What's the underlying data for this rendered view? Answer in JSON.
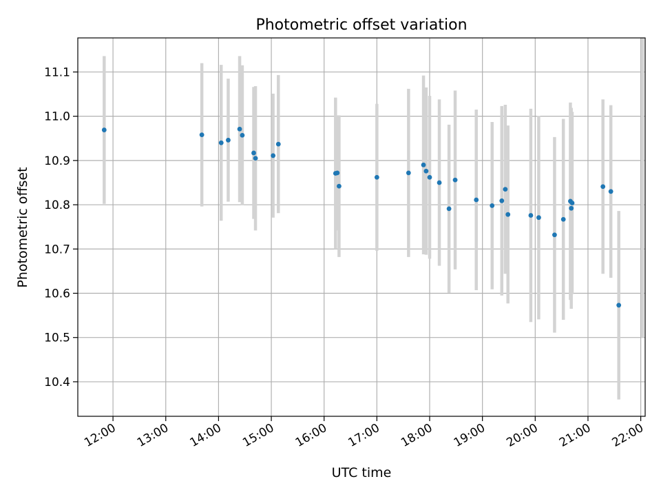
{
  "chart_data": {
    "type": "scatter",
    "title": "Photometric offset variation",
    "xlabel": "UTC time",
    "ylabel": "Photometric offset",
    "grid": true,
    "legend": "none",
    "xlim": [
      "11:20",
      "22:05"
    ],
    "ylim": [
      10.322,
      11.177
    ],
    "x_ticks": [
      "12:00",
      "13:00",
      "14:00",
      "15:00",
      "16:00",
      "17:00",
      "18:00",
      "19:00",
      "20:00",
      "21:00",
      "22:00"
    ],
    "y_ticks": [
      10.4,
      10.5,
      10.6,
      10.7,
      10.8,
      10.9,
      11.0,
      11.1
    ],
    "colors": {
      "point": "#1f77b4",
      "errorbar": "#d3d3d3",
      "grid": "#b0b0b0"
    },
    "points": [
      {
        "x": "11:50",
        "y": 10.969,
        "yerr": 0.167
      },
      {
        "x": "13:41",
        "y": 10.958,
        "yerr": 0.162
      },
      {
        "x": "14:03",
        "y": 10.94,
        "yerr": 0.176
      },
      {
        "x": "14:11",
        "y": 10.946,
        "yerr": 0.139
      },
      {
        "x": "14:24",
        "y": 10.971,
        "yerr": 0.165
      },
      {
        "x": "14:27",
        "y": 10.957,
        "yerr": 0.158
      },
      {
        "x": "14:40",
        "y": 10.917,
        "yerr": 0.149
      },
      {
        "x": "14:42",
        "y": 10.905,
        "yerr": 0.163
      },
      {
        "x": "15:02",
        "y": 10.911,
        "yerr": 0.14
      },
      {
        "x": "15:08",
        "y": 10.937,
        "yerr": 0.156
      },
      {
        "x": "16:13",
        "y": 10.871,
        "yerr": 0.171
      },
      {
        "x": "16:15",
        "y": 10.872,
        "yerr": 0.13
      },
      {
        "x": "16:17",
        "y": 10.842,
        "yerr": 0.16
      },
      {
        "x": "17:00",
        "y": 10.862,
        "yerr": 0.166
      },
      {
        "x": "17:36",
        "y": 10.872,
        "yerr": 0.19
      },
      {
        "x": "17:53",
        "y": 10.89,
        "yerr": 0.202
      },
      {
        "x": "17:56",
        "y": 10.876,
        "yerr": 0.189
      },
      {
        "x": "18:00",
        "y": 10.862,
        "yerr": 0.184
      },
      {
        "x": "18:11",
        "y": 10.85,
        "yerr": 0.188
      },
      {
        "x": "18:22",
        "y": 10.791,
        "yerr": 0.19
      },
      {
        "x": "18:29",
        "y": 10.856,
        "yerr": 0.202
      },
      {
        "x": "18:53",
        "y": 10.811,
        "yerr": 0.204
      },
      {
        "x": "19:11",
        "y": 10.798,
        "yerr": 0.189
      },
      {
        "x": "19:22",
        "y": 10.809,
        "yerr": 0.214
      },
      {
        "x": "19:26",
        "y": 10.835,
        "yerr": 0.191
      },
      {
        "x": "19:29",
        "y": 10.778,
        "yerr": 0.201
      },
      {
        "x": "19:55",
        "y": 10.776,
        "yerr": 0.241
      },
      {
        "x": "20:04",
        "y": 10.771,
        "yerr": 0.23
      },
      {
        "x": "20:22",
        "y": 10.732,
        "yerr": 0.221
      },
      {
        "x": "20:32",
        "y": 10.767,
        "yerr": 0.227
      },
      {
        "x": "20:40",
        "y": 10.808,
        "yerr": 0.223
      },
      {
        "x": "20:41",
        "y": 10.792,
        "yerr": 0.227
      },
      {
        "x": "20:42",
        "y": 10.804,
        "yerr": 0.206
      },
      {
        "x": "21:17",
        "y": 10.841,
        "yerr": 0.197
      },
      {
        "x": "21:26",
        "y": 10.83,
        "yerr": 0.195
      },
      {
        "x": "21:35",
        "y": 10.573,
        "yerr": 0.213
      }
    ],
    "extra_errorbars": [
      {
        "x": "22:02",
        "ymin": 10.5,
        "ymax": 11.18
      }
    ]
  }
}
